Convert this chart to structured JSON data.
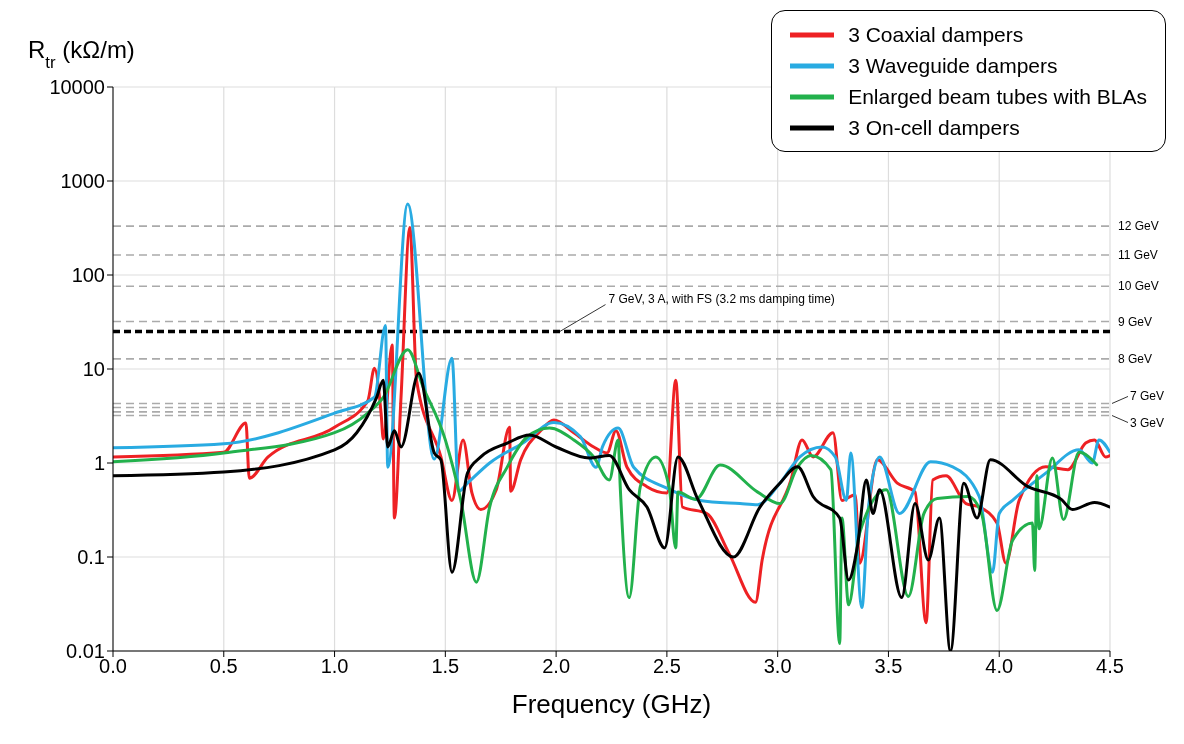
{
  "chart_data": {
    "type": "line",
    "xlabel": "Frequency (GHz)",
    "ylabel": "R$_{tr}$ (kΩ/m)",
    "log": "y",
    "grid": true,
    "legend": "top right",
    "line_style": "solid",
    "marker": "none",
    "xlim": [
      0,
      4.5
    ],
    "xticks": [
      {
        "value": 0,
        "label": "0.0"
      },
      {
        "value": 0.5,
        "label": "0.5"
      },
      {
        "value": 1,
        "label": "1.0"
      },
      {
        "value": 1.5,
        "label": "1.5"
      },
      {
        "value": 2,
        "label": "2.0"
      },
      {
        "value": 2.5,
        "label": "2.5"
      },
      {
        "value": 3,
        "label": "3.0"
      },
      {
        "value": 3.5,
        "label": "3.5"
      },
      {
        "value": 4,
        "label": "4.0"
      },
      {
        "value": 4.5,
        "label": "4.5"
      }
    ],
    "ylim": [
      0.01,
      10000
    ],
    "yticks": [
      0.01,
      0.1,
      1,
      10,
      100,
      1000,
      10000
    ],
    "ref_lines": [
      {
        "axis": "y",
        "value": 331,
        "label": "12 GeV",
        "color": "#aaaaaa",
        "line_style": "dashed"
      },
      {
        "axis": "y",
        "value": 163,
        "label": "11 GeV",
        "color": "#aaaaaa",
        "line_style": "dashed"
      },
      {
        "axis": "y",
        "value": 76,
        "label": "10 GeV",
        "color": "#aaaaaa",
        "line_style": "dashed"
      },
      {
        "axis": "y",
        "value": 32,
        "label": "9 GeV",
        "color": "#aaaaaa",
        "line_style": "dashed"
      },
      {
        "axis": "y",
        "value": 12.8,
        "label": "8 GeV",
        "color": "#aaaaaa",
        "line_style": "dashed"
      },
      {
        "axis": "y",
        "value": 4.3,
        "label": "7 GeV",
        "color": "#aaaaaa",
        "line_style": "dashed"
      },
      {
        "axis": "y",
        "value": 3.9,
        "color": "#aaaaaa",
        "line_style": "dashed"
      },
      {
        "axis": "y",
        "value": 3.5,
        "color": "#aaaaaa",
        "line_style": "dashed"
      },
      {
        "axis": "y",
        "value": 3.2,
        "label": "3 GeV",
        "color": "#aaaaaa",
        "line_style": "dashed"
      },
      {
        "axis": "y",
        "value": 25,
        "label": "7 GeV, 3 A, with FS (3.2 ms damping time)",
        "color": "#000000",
        "line_style": "dashed"
      }
    ],
    "series": [
      {
        "name": "3 Coaxial dampers",
        "color": "#ee2124",
        "x": [
          0,
          0.5,
          0.6,
          0.615,
          0.7,
          1.0,
          1.15,
          1.18,
          1.21,
          1.22,
          1.26,
          1.27,
          1.3,
          1.34,
          1.37,
          1.48,
          1.53,
          1.58,
          1.62,
          1.66,
          1.73,
          1.79,
          1.795,
          1.84,
          1.93,
          1.99,
          2.08,
          2.17,
          2.23,
          2.27,
          2.32,
          2.41,
          2.5,
          2.54,
          2.57,
          2.68,
          2.78,
          2.9,
          2.93,
          3.06,
          3.11,
          3.16,
          3.25,
          3.29,
          3.35,
          3.37,
          3.45,
          3.54,
          3.62,
          3.67,
          3.7,
          3.76,
          3.85,
          3.91,
          3.99,
          4.03,
          4.09,
          4.21,
          4.31,
          4.39,
          4.43,
          4.48,
          4.5
        ],
        "values": [
          1.16,
          1.3,
          2.66,
          0.69,
          1.16,
          2.4,
          4.6,
          10.2,
          3.4,
          1.8,
          18,
          0.26,
          5,
          320,
          7.6,
          1.16,
          0.4,
          1.76,
          0.48,
          0.32,
          0.52,
          2.4,
          0.5,
          1.08,
          2.2,
          2.87,
          2.1,
          1.48,
          1.28,
          2.2,
          0.9,
          0.56,
          0.48,
          7.6,
          0.34,
          0.29,
          0.11,
          0.033,
          0.093,
          0.66,
          1.76,
          1.16,
          2.1,
          0.4,
          0.46,
          0.086,
          1.08,
          0.61,
          0.49,
          0.02,
          0.66,
          0.73,
          0.37,
          0.34,
          0.23,
          0.086,
          0.4,
          0.91,
          0.85,
          1.63,
          1.76,
          1.16,
          1.2
        ]
      },
      {
        "name": "3 Waveguide dampers",
        "color": "#29abe2",
        "x": [
          0,
          0.5,
          1.0,
          1.18,
          1.23,
          1.24,
          1.33,
          1.45,
          1.53,
          1.56,
          1.6,
          1.7,
          1.85,
          1.99,
          2.11,
          2.18,
          2.21,
          2.28,
          2.35,
          2.5,
          2.65,
          2.83,
          2.91,
          3.01,
          3.1,
          3.2,
          3.26,
          3.31,
          3.33,
          3.38,
          3.41,
          3.46,
          3.55,
          3.69,
          3.79,
          3.91,
          3.97,
          4.0,
          4.06,
          4.21,
          4.36,
          4.42,
          4.45,
          4.5
        ],
        "values": [
          1.45,
          1.6,
          3.4,
          5,
          29,
          0.9,
          570,
          1.1,
          13,
          0.5,
          0.61,
          1.0,
          1.63,
          2.7,
          1.9,
          0.9,
          1.5,
          2.35,
          0.9,
          0.54,
          0.4,
          0.37,
          0.36,
          0.61,
          1.16,
          1.48,
          1.16,
          0.4,
          1.28,
          0.029,
          0.34,
          1.16,
          0.29,
          1.03,
          0.91,
          0.44,
          0.069,
          0.29,
          0.4,
          0.78,
          1.38,
          1.0,
          1.76,
          1.3
        ]
      },
      {
        "name": "Enlarged beam tubes with BLAs",
        "color": "#22b14c",
        "x": [
          0,
          0.5,
          1.0,
          1.15,
          1.22,
          1.33,
          1.4,
          1.5,
          1.57,
          1.64,
          1.7,
          1.78,
          1.87,
          1.97,
          2.08,
          2.17,
          2.24,
          2.28,
          2.29,
          2.33,
          2.38,
          2.45,
          2.51,
          2.54,
          2.55,
          2.63,
          2.74,
          2.91,
          3.01,
          3.09,
          3.15,
          3.24,
          3.28,
          3.29,
          3.32,
          3.37,
          3.49,
          3.59,
          3.66,
          3.72,
          3.86,
          3.92,
          3.99,
          4.06,
          4.15,
          4.16,
          4.17,
          4.18,
          4.24,
          4.29,
          4.36,
          4.44
        ],
        "values": [
          1.03,
          1.28,
          2.1,
          3.4,
          5,
          16,
          6.4,
          1.76,
          0.4,
          0.054,
          0.34,
          0.91,
          1.9,
          2.35,
          1.76,
          1.16,
          0.66,
          1.76,
          0.52,
          0.037,
          0.56,
          1.16,
          0.56,
          0.125,
          0.49,
          0.41,
          0.95,
          0.49,
          0.37,
          0.91,
          1.2,
          0.85,
          0.012,
          0.26,
          0.031,
          0.18,
          0.52,
          0.038,
          0.29,
          0.42,
          0.44,
          0.29,
          0.027,
          0.15,
          0.23,
          0.072,
          0.73,
          0.2,
          1.13,
          0.25,
          1.3,
          0.96
        ]
      },
      {
        "name": "3 On-cell dampers",
        "color": "#000000",
        "x": [
          0,
          0.5,
          1.0,
          1.1,
          1.19,
          1.22,
          1.24,
          1.27,
          1.3,
          1.38,
          1.45,
          1.48,
          1.53,
          1.6,
          1.66,
          1.78,
          1.88,
          2.0,
          2.15,
          2.24,
          2.33,
          2.41,
          2.49,
          2.55,
          2.64,
          2.8,
          2.92,
          3.01,
          3.09,
          3.16,
          3.28,
          3.32,
          3.36,
          3.4,
          3.43,
          3.46,
          3.56,
          3.62,
          3.68,
          3.73,
          3.78,
          3.84,
          3.9,
          3.96,
          4.13,
          4.28,
          4.33,
          4.43,
          4.5
        ],
        "values": [
          0.73,
          0.8,
          1.38,
          2.1,
          5,
          7.6,
          1.48,
          2.2,
          1.48,
          9,
          1.28,
          1.08,
          0.069,
          0.78,
          1.16,
          1.63,
          1.98,
          1.48,
          1.13,
          1.2,
          0.52,
          0.34,
          0.125,
          1.16,
          0.41,
          0.1,
          0.34,
          0.61,
          0.91,
          0.44,
          0.26,
          0.057,
          0.13,
          0.66,
          0.29,
          0.52,
          0.037,
          0.37,
          0.093,
          0.26,
          0.01,
          0.61,
          0.26,
          1.08,
          0.56,
          0.41,
          0.32,
          0.38,
          0.34
        ]
      }
    ]
  }
}
